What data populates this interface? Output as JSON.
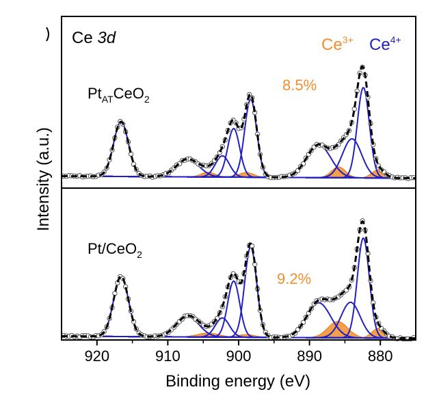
{
  "chart_data": {
    "type": "line",
    "title": "Ce 3d",
    "title_prefix": "Ce",
    "title_orbital": "3d",
    "xlabel": "Binding energy (eV)",
    "ylabel": "Intensity (a.u.)",
    "xlim": [
      925,
      875
    ],
    "x_reversed": true,
    "xticks": [
      920,
      910,
      900,
      890,
      880
    ],
    "legend": [
      {
        "base": "Ce",
        "sup": "3+",
        "color": "#F28E2B"
      },
      {
        "base": "Ce",
        "sup": "4+",
        "color": "#1F1FC4"
      }
    ],
    "panels": [
      {
        "sample_base": "Pt",
        "sample_sub": "AT",
        "sample_rest": "CeO",
        "sample_sub2": "2",
        "ce3_percent": "8.5%",
        "ce4_peaks": [
          {
            "center": 916.6,
            "height": 80,
            "sigma": 1.05
          },
          {
            "center": 907.2,
            "height": 26,
            "sigma": 1.6
          },
          {
            "center": 902.3,
            "height": 31,
            "sigma": 1.0
          },
          {
            "center": 900.7,
            "height": 71,
            "sigma": 0.85
          },
          {
            "center": 898.3,
            "height": 114,
            "sigma": 0.85
          },
          {
            "center": 888.7,
            "height": 48,
            "sigma": 1.7
          },
          {
            "center": 884.0,
            "height": 57,
            "sigma": 1.35
          },
          {
            "center": 882.4,
            "height": 132,
            "sigma": 0.85
          }
        ],
        "ce3_peaks": [
          {
            "center": 904.3,
            "height": 7,
            "sigma": 1.0
          },
          {
            "center": 898.9,
            "height": 7,
            "sigma": 1.0
          },
          {
            "center": 885.9,
            "height": 16,
            "sigma": 1.0
          },
          {
            "center": 880.3,
            "height": 12,
            "sigma": 0.9
          }
        ],
        "baseline": 0
      },
      {
        "sample_base": "Pt/CeO",
        "sample_sub": "2",
        "ce3_percent": "9.2%",
        "ce4_peaks": [
          {
            "center": 916.6,
            "height": 88,
            "sigma": 1.05
          },
          {
            "center": 907.2,
            "height": 30,
            "sigma": 1.6
          },
          {
            "center": 902.3,
            "height": 28,
            "sigma": 1.0
          },
          {
            "center": 900.7,
            "height": 82,
            "sigma": 0.85
          },
          {
            "center": 898.3,
            "height": 132,
            "sigma": 0.85
          },
          {
            "center": 888.7,
            "height": 51,
            "sigma": 1.7
          },
          {
            "center": 884.2,
            "height": 52,
            "sigma": 1.35
          },
          {
            "center": 882.4,
            "height": 146,
            "sigma": 0.85
          }
        ],
        "ce3_peaks": [
          {
            "center": 904.3,
            "height": 6,
            "sigma": 1.5
          },
          {
            "center": 898.9,
            "height": 4,
            "sigma": 1.2
          },
          {
            "center": 886.0,
            "height": 24,
            "sigma": 1.4
          },
          {
            "center": 880.3,
            "height": 14,
            "sigma": 0.9
          }
        ],
        "baseline": 0
      }
    ],
    "series": [
      {
        "name": "Experimental data",
        "style": "open circles",
        "color": "#555555"
      },
      {
        "name": "Envelope fit",
        "style": "dashed",
        "color": "#000000"
      },
      {
        "name": "Ce4+ components",
        "style": "line",
        "color": "#1F1FC4"
      },
      {
        "name": "Ce3+ components",
        "style": "filled",
        "color": "#F28E2B"
      }
    ]
  }
}
